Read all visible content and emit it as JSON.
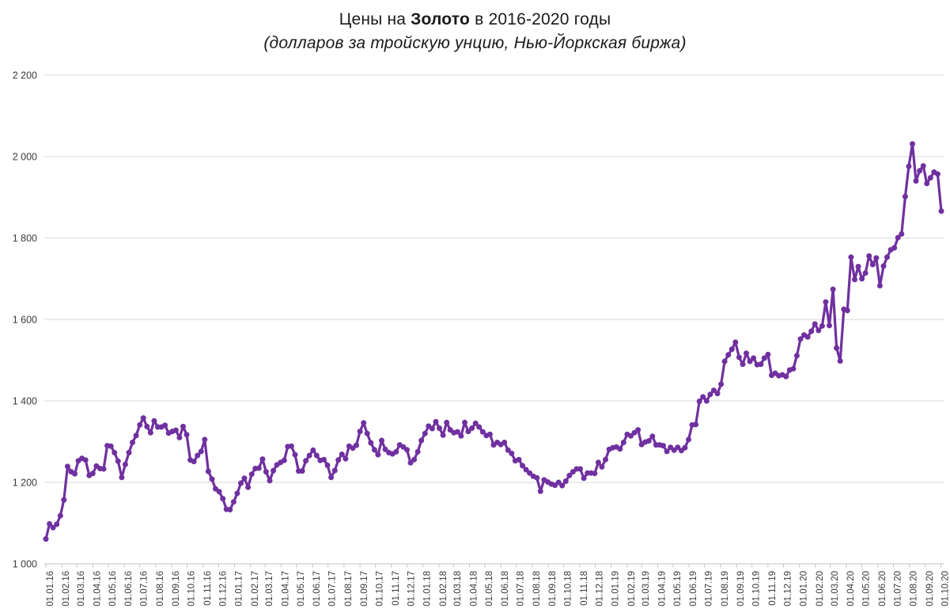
{
  "title": {
    "prefix": "Цены на ",
    "bold": "Золото",
    "suffix": " в 2016-2020 годы"
  },
  "subtitle": "(долларов за тройскую унцию, Нью-Йоркская биржа)",
  "colors": {
    "line": "#7030A0",
    "grid": "#D9D9D9",
    "axis": "#C6C6C6",
    "tick": "#BFBFBF",
    "tick_label": "#3b3b3b",
    "title_text": "#1a1a1a",
    "background": "#FFFFFF"
  },
  "chart_data": {
    "type": "line",
    "title": "Цены на Золото в 2016-2020 годы",
    "subtitle": "(долларов за тройскую унцию, Нью-Йоркская биржа)",
    "xlabel": "",
    "ylabel": "",
    "ylim": [
      1000,
      2200
    ],
    "ytick_step": 200,
    "ytick_labels": [
      "2 200",
      "2 000",
      "1 800",
      "1 600",
      "1 400",
      "1 200",
      "1 000"
    ],
    "grid": "horizontal-only",
    "legend": "none",
    "marker": "circle",
    "x_start_date": "01.01.16",
    "x_interval_days": 7,
    "xtick_labels": [
      "01.01.16",
      "01.02.16",
      "01.03.16",
      "01.04.16",
      "01.05.16",
      "01.06.16",
      "01.07.16",
      "01.08.16",
      "01.09.16",
      "01.10.16",
      "01.11.16",
      "01.12.16",
      "01.01.17",
      "01.02.17",
      "01.03.17",
      "01.04.17",
      "01.05.17",
      "01.06.17",
      "01.07.17",
      "01.08.17",
      "01.09.17",
      "01.10.17",
      "01.11.17",
      "01.12.17",
      "01.01.18",
      "01.02.18",
      "01.03.18",
      "01.04.18",
      "01.05.18",
      "01.06.18",
      "01.07.18",
      "01.08.18",
      "01.09.18",
      "01.10.18",
      "01.11.18",
      "01.12.18",
      "01.01.19",
      "01.02.19",
      "01.03.19",
      "01.04.19",
      "01.05.19",
      "01.06.19",
      "01.07.19",
      "01.08.19",
      "01.09.19",
      "01.10.19",
      "01.11.19",
      "01.12.19",
      "01.01.20",
      "01.02.20",
      "01.03.20",
      "01.04.20",
      "01.05.20",
      "01.06.20",
      "01.07.20",
      "01.08.20",
      "01.09.20",
      "01.10.20"
    ],
    "values": [
      1061,
      1098,
      1089,
      1097,
      1118,
      1157,
      1239,
      1226,
      1221,
      1253,
      1259,
      1255,
      1217,
      1222,
      1240,
      1234,
      1233,
      1290,
      1289,
      1273,
      1252,
      1212,
      1244,
      1273,
      1298,
      1315,
      1341,
      1358,
      1337,
      1322,
      1351,
      1336,
      1336,
      1340,
      1321,
      1325,
      1328,
      1310,
      1337,
      1317,
      1255,
      1251,
      1266,
      1276,
      1305,
      1227,
      1208,
      1184,
      1177,
      1160,
      1134,
      1133,
      1152,
      1173,
      1198,
      1210,
      1188,
      1220,
      1234,
      1235,
      1257,
      1226,
      1204,
      1229,
      1243,
      1249,
      1254,
      1288,
      1289,
      1268,
      1228,
      1228,
      1253,
      1266,
      1279,
      1266,
      1254,
      1256,
      1242,
      1212,
      1229,
      1255,
      1269,
      1258,
      1289,
      1284,
      1291,
      1325,
      1346,
      1320,
      1297,
      1280,
      1268,
      1303,
      1281,
      1273,
      1270,
      1275,
      1292,
      1287,
      1280,
      1248,
      1256,
      1275,
      1303,
      1320,
      1338,
      1332,
      1349,
      1333,
      1316,
      1347,
      1329,
      1322,
      1324,
      1314,
      1347,
      1325,
      1333,
      1345,
      1336,
      1324,
      1315,
      1318,
      1292,
      1298,
      1293,
      1298,
      1279,
      1271,
      1253,
      1256,
      1241,
      1231,
      1223,
      1215,
      1211,
      1178,
      1206,
      1201,
      1196,
      1193,
      1200,
      1192,
      1203,
      1217,
      1226,
      1233,
      1233,
      1210,
      1223,
      1223,
      1222,
      1249,
      1238,
      1256,
      1281,
      1285,
      1287,
      1282,
      1298,
      1318,
      1314,
      1322,
      1329,
      1293,
      1299,
      1302,
      1313,
      1292,
      1292,
      1290,
      1276,
      1286,
      1279,
      1286,
      1278,
      1285,
      1305,
      1341,
      1342,
      1399,
      1410,
      1400,
      1416,
      1426,
      1418,
      1441,
      1497,
      1513,
      1527,
      1544,
      1507,
      1490,
      1517,
      1497,
      1505,
      1489,
      1490,
      1505,
      1514,
      1463,
      1468,
      1462,
      1464,
      1460,
      1476,
      1479,
      1511,
      1552,
      1562,
      1557,
      1571,
      1589,
      1573,
      1584,
      1643,
      1585,
      1674,
      1530,
      1498,
      1625,
      1622,
      1753,
      1698,
      1730,
      1700,
      1714,
      1756,
      1735,
      1751,
      1683,
      1731,
      1753,
      1771,
      1776,
      1801,
      1810,
      1902,
      1976,
      2031,
      1940,
      1965,
      1977,
      1934,
      1948,
      1962,
      1957,
      1866
    ]
  }
}
